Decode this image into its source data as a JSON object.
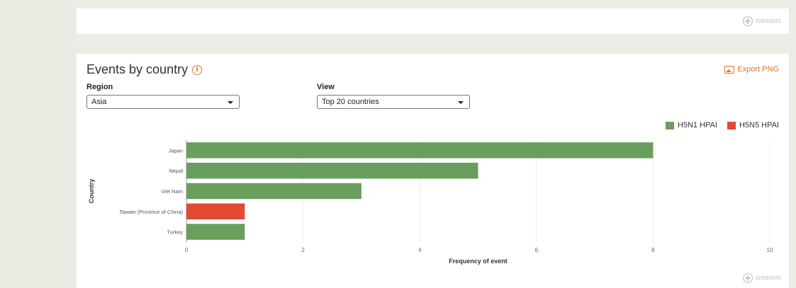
{
  "top_card": {
    "date": "02/03/2023"
  },
  "panel": {
    "title": "Events by country",
    "export_label": "Export PNG",
    "region": {
      "label": "Region",
      "value": "Asia"
    },
    "view": {
      "label": "View",
      "value": "Top 20 countries"
    },
    "date": "02/03/2023"
  },
  "colors": {
    "h5n1": "#6a9e5c",
    "h5n5": "#e34a33",
    "accent": "#e8702a"
  },
  "chart_data": {
    "type": "bar",
    "orientation": "horizontal",
    "categories": [
      "Japan",
      "Nepal",
      "Viet Nam",
      "Taiwan (Province of China)",
      "Turkey"
    ],
    "series": [
      {
        "name": "H5N1 HPAI",
        "color": "#6a9e5c",
        "values": [
          8,
          5,
          3,
          0,
          1
        ]
      },
      {
        "name": "H5N5 HPAI",
        "color": "#e34a33",
        "values": [
          0,
          0,
          0,
          1,
          0
        ]
      }
    ],
    "xlabel": "Frequency of event",
    "ylabel": "Country",
    "xlim": [
      0,
      10
    ],
    "xticks": [
      0,
      2,
      4,
      6,
      8,
      10
    ],
    "grid": true,
    "legend_position": "top-right"
  }
}
